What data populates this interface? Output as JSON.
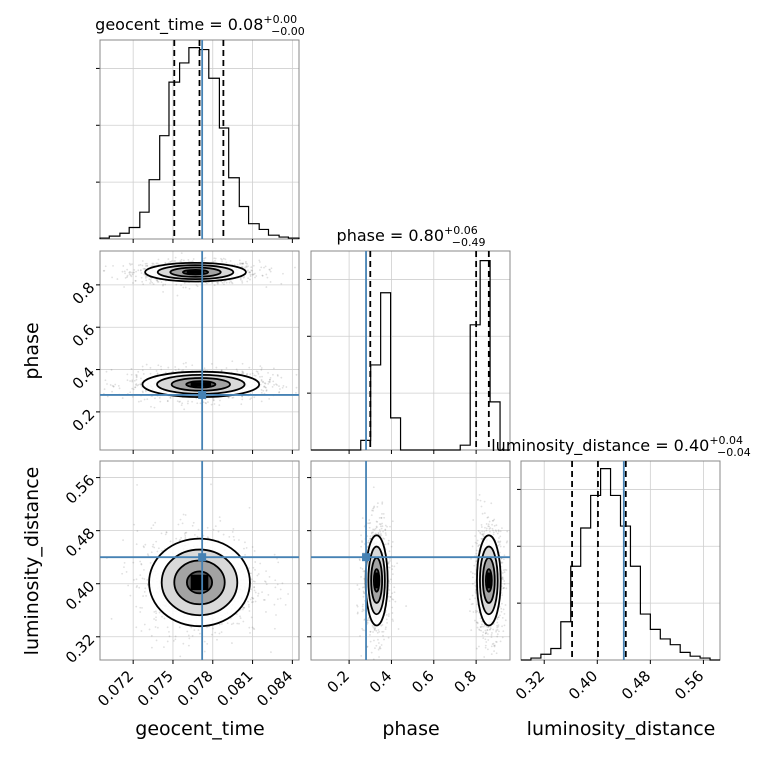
{
  "chart_data": {
    "type": "corner",
    "parameters": [
      "geocent_time",
      "phase",
      "luminosity_distance"
    ],
    "titles": {
      "geocent_time": {
        "name": "geocent_time",
        "value": "0.08",
        "plus": "+0.00",
        "minus": "−0.00"
      },
      "phase": {
        "name": "phase",
        "value": "0.80",
        "plus": "+0.06",
        "minus": "−0.49"
      },
      "luminosity_distance": {
        "name": "luminosity_distance",
        "value": "0.40",
        "plus": "+0.04",
        "minus": "−0.04"
      }
    },
    "axis_labels": {
      "geocent_time": "geocent_time",
      "phase": "phase",
      "luminosity_distance": "luminosity_distance"
    },
    "ranges": {
      "geocent_time": [
        0.0695,
        0.0845
      ],
      "phase": [
        0.02,
        0.96
      ],
      "luminosity_distance": [
        0.285,
        0.585
      ]
    },
    "ticks": {
      "geocent_time": [
        0.072,
        0.075,
        0.078,
        0.081,
        0.084
      ],
      "phase": [
        0.2,
        0.4,
        0.6,
        0.8
      ],
      "luminosity_distance": [
        0.32,
        0.4,
        0.48,
        0.56
      ]
    },
    "tick_labels": {
      "geocent_time": [
        "0.072",
        "0.075",
        "0.078",
        "0.081",
        "0.084"
      ],
      "phase": [
        "0.2",
        "0.4",
        "0.6",
        "0.8"
      ],
      "luminosity_distance": [
        "0.32",
        "0.40",
        "0.48",
        "0.56"
      ]
    },
    "truths": {
      "geocent_time": 0.0772,
      "phase": 0.28,
      "luminosity_distance": 0.44
    },
    "quantiles": {
      "geocent_time": [
        0.0751,
        0.077,
        0.0788
      ],
      "phase": [
        0.3,
        0.8,
        0.86
      ],
      "luminosity_distance": [
        0.362,
        0.401,
        0.443
      ]
    },
    "histograms": {
      "geocent_time": {
        "edges": [
          0.0695,
          0.0702,
          0.071,
          0.0717,
          0.0725,
          0.0732,
          0.074,
          0.0747,
          0.0755,
          0.0762,
          0.077,
          0.0777,
          0.0785,
          0.0792,
          0.08,
          0.0807,
          0.0815,
          0.0822,
          0.083,
          0.0837,
          0.0845
        ],
        "counts": [
          0.5,
          1.5,
          3,
          6,
          14,
          31,
          54,
          82,
          92,
          100,
          99,
          84,
          58,
          32,
          17,
          8,
          5,
          2,
          1,
          0.5
        ],
        "ymax": 104
      },
      "phase": {
        "edges": [
          0.02,
          0.067,
          0.114,
          0.161,
          0.208,
          0.255,
          0.302,
          0.349,
          0.396,
          0.443,
          0.49,
          0.537,
          0.584,
          0.631,
          0.678,
          0.725,
          0.772,
          0.819,
          0.866,
          0.913,
          0.96
        ],
        "counts": [
          0,
          0,
          0,
          0,
          0,
          6,
          53,
          98,
          20,
          0,
          0,
          0,
          0,
          0,
          0,
          3,
          78,
          118,
          30,
          0
        ],
        "ymax": 124
      },
      "luminosity_distance": {
        "edges": [
          0.285,
          0.3,
          0.315,
          0.33,
          0.345,
          0.36,
          0.375,
          0.39,
          0.405,
          0.42,
          0.435,
          0.45,
          0.465,
          0.48,
          0.495,
          0.51,
          0.525,
          0.54,
          0.555,
          0.57,
          0.585
        ],
        "counts": [
          0,
          1,
          3,
          6,
          20,
          49,
          69,
          86,
          100,
          86,
          70,
          49,
          24,
          16,
          11,
          8,
          4,
          2,
          1,
          0
        ],
        "ymax": 104
      }
    },
    "joint_modes": {
      "phase_vs_geocent_time": [
        {
          "x": 0.0767,
          "y": 0.86,
          "sx": 0.0019,
          "sy": 0.022,
          "w": 1.0
        },
        {
          "x": 0.0771,
          "y": 0.33,
          "sx": 0.0022,
          "sy": 0.03,
          "w": 1.0
        }
      ],
      "luminosity_distance_vs_geocent_time": [
        {
          "x": 0.077,
          "y": 0.402,
          "sx": 0.0019,
          "sy": 0.033,
          "w": 1.0
        }
      ],
      "luminosity_distance_vs_phase": [
        {
          "x": 0.33,
          "y": 0.405,
          "sx": 0.026,
          "sy": 0.034,
          "w": 1.0
        },
        {
          "x": 0.86,
          "y": 0.405,
          "sx": 0.028,
          "sy": 0.034,
          "w": 1.0
        }
      ]
    },
    "grid": true
  }
}
